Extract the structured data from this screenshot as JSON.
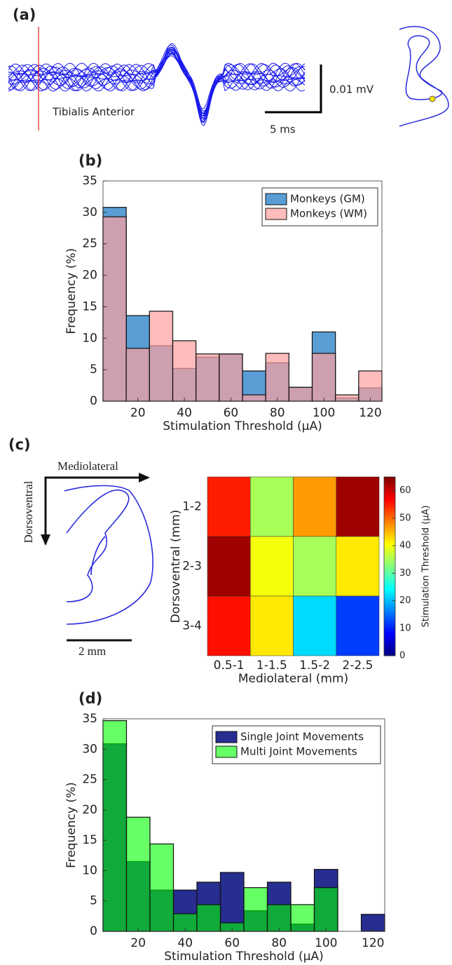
{
  "panel_a": {
    "label": "(a)",
    "muscle": "Tibialis Anterior",
    "scale_y": "0.01 mV",
    "scale_x": "5 ms"
  },
  "diagram": {
    "label": "(c)",
    "horizontal_axis": "Mediolateral",
    "vertical_axis": "Dorsoventral",
    "scale": "2 mm"
  },
  "chart_data": [
    {
      "type": "histogram",
      "title": "(b)",
      "x_label": "Stimulation Threshold (μA)",
      "y_label": "Frequency (%)",
      "bins": [
        5,
        15,
        25,
        35,
        45,
        55,
        65,
        75,
        85,
        95,
        105,
        115,
        125
      ],
      "series": [
        {
          "name": "Monkeys (GM)",
          "color": "rgba(60,140,205,0.85)",
          "values": [
            30.8,
            13.6,
            8.8,
            5.2,
            7.0,
            7.5,
            4.8,
            6.1,
            2.2,
            11.0,
            0.5,
            2.1
          ]
        },
        {
          "name": "Monkeys (WM)",
          "color": "rgba(255,160,160,0.7)",
          "values": [
            29.3,
            8.4,
            14.3,
            9.6,
            7.5,
            7.5,
            1.0,
            7.6,
            2.2,
            7.6,
            1.0,
            4.8
          ]
        }
      ],
      "xlim": [
        5,
        125
      ],
      "xticks": [
        20,
        40,
        60,
        80,
        100,
        120
      ],
      "ylim": [
        0,
        35
      ],
      "yticks": [
        0,
        5,
        10,
        15,
        20,
        25,
        30,
        35
      ],
      "legend": "upper right"
    },
    {
      "type": "heatmap",
      "x_label": "Mediolateral (mm)",
      "y_label": "Dorsoventral (mm)",
      "colorbar_label": "Stimulation Threshold (μA)",
      "x_categories": [
        "0.5-1",
        "1-1.5",
        "1.5-2",
        "2-2.5"
      ],
      "y_categories": [
        "1-2",
        "2-3",
        "3-4"
      ],
      "values": [
        [
          55,
          35,
          47,
          63
        ],
        [
          63,
          40,
          35,
          42
        ],
        [
          56,
          42,
          22,
          12
        ]
      ],
      "clim": [
        0,
        65
      ],
      "cticks": [
        0,
        10,
        20,
        30,
        40,
        50,
        60
      ],
      "colormap": "jet"
    },
    {
      "type": "histogram",
      "title": "(d)",
      "x_label": "Stimulation Threshold (μA)",
      "y_label": "Frequency (%)",
      "bins": [
        5,
        15,
        25,
        35,
        45,
        55,
        65,
        75,
        85,
        95,
        105,
        115,
        125
      ],
      "series": [
        {
          "name": "Single Joint Movements",
          "color": "rgba(40,45,145,1)",
          "values": [
            30.9,
            11.5,
            6.8,
            6.8,
            8.1,
            9.7,
            3.4,
            8.1,
            1.2,
            10.2,
            0,
            2.8
          ]
        },
        {
          "name": "Multi Joint Movements",
          "color": "rgba(0,255,0,0.6)",
          "values": [
            34.7,
            18.8,
            14.4,
            2.9,
            4.4,
            1.4,
            7.2,
            4.4,
            4.4,
            7.2,
            0,
            0
          ]
        }
      ],
      "xlim": [
        5,
        125
      ],
      "xticks": [
        20,
        40,
        60,
        80,
        100,
        120
      ],
      "ylim": [
        0,
        35
      ],
      "yticks": [
        0,
        5,
        10,
        15,
        20,
        25,
        30,
        35
      ],
      "legend": "upper right"
    }
  ]
}
